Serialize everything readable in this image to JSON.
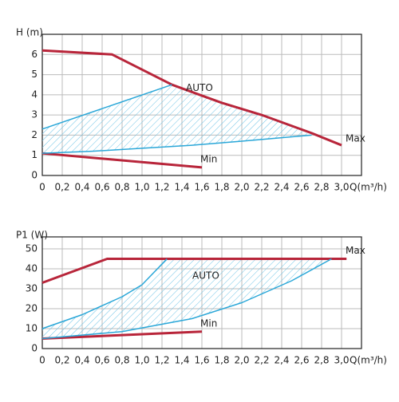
{
  "chart_data": [
    {
      "type": "line",
      "y_label": "H (m)",
      "x_label": "Q(m³/h)",
      "annotation": "AUTO",
      "xlim": [
        0,
        3.2
      ],
      "ylim": [
        0,
        7
      ],
      "xticks": [
        0,
        {
          "value": 0.2,
          "label": "0,2"
        },
        {
          "value": 0.4,
          "label": "0,4"
        },
        {
          "value": 0.6,
          "label": "0,6"
        },
        {
          "value": 0.8,
          "label": "0,8"
        },
        {
          "value": 1.0,
          "label": "1,0"
        },
        {
          "value": 1.2,
          "label": "1,2"
        },
        {
          "value": 1.4,
          "label": "1,4"
        },
        {
          "value": 1.6,
          "label": "1,6"
        },
        {
          "value": 1.8,
          "label": "1,8"
        },
        {
          "value": 2.0,
          "label": "2,0"
        },
        {
          "value": 2.2,
          "label": "2,2"
        },
        {
          "value": 2.4,
          "label": "2,4"
        },
        {
          "value": 2.6,
          "label": "2,6"
        },
        {
          "value": 2.8,
          "label": "2,8"
        },
        {
          "value": 3.0,
          "label": "3,0"
        }
      ],
      "yticks": [
        0,
        1,
        2,
        3,
        4,
        5,
        6
      ],
      "grid": true,
      "series": [
        {
          "name": "Max",
          "color": "#b8253a",
          "x": [
            0,
            0.7,
            1.3,
            1.8,
            2.2,
            2.7,
            3.0
          ],
          "values": [
            6.2,
            6.0,
            4.5,
            3.6,
            3.0,
            2.1,
            1.5
          ]
        },
        {
          "name": "Min",
          "color": "#b8253a",
          "x": [
            0,
            1.6
          ],
          "values": [
            1.1,
            0.4
          ]
        },
        {
          "color": "#2aa7d8",
          "x": [
            0,
            1.3
          ],
          "values": [
            2.3,
            4.5
          ]
        },
        {
          "color": "#2aa7d8",
          "x": [
            0,
            0.5,
            1.0,
            1.5,
            2.0,
            2.7
          ],
          "values": [
            1.1,
            1.2,
            1.35,
            1.5,
            1.7,
            2.0
          ]
        }
      ]
    },
    {
      "type": "line",
      "y_label": "P1 (W)",
      "x_label": "Q(m³/h)",
      "annotation": "AUTO",
      "xlim": [
        0,
        3.2
      ],
      "ylim": [
        0,
        56
      ],
      "xticks": [
        0,
        {
          "value": 0.2,
          "label": "0,2"
        },
        {
          "value": 0.4,
          "label": "0,4"
        },
        {
          "value": 0.6,
          "label": "0,6"
        },
        {
          "value": 0.8,
          "label": "0,8"
        },
        {
          "value": 1.0,
          "label": "1,0"
        },
        {
          "value": 1.2,
          "label": "1,2"
        },
        {
          "value": 1.4,
          "label": "1,4"
        },
        {
          "value": 1.6,
          "label": "1,6"
        },
        {
          "value": 1.8,
          "label": "1,8"
        },
        {
          "value": 2.0,
          "label": "2,0"
        },
        {
          "value": 2.2,
          "label": "2,2"
        },
        {
          "value": 2.4,
          "label": "2,4"
        },
        {
          "value": 2.6,
          "label": "2,6"
        },
        {
          "value": 2.8,
          "label": "2,8"
        },
        {
          "value": 3.0,
          "label": "3,0"
        }
      ],
      "yticks": [
        0,
        10,
        20,
        30,
        40,
        50
      ],
      "grid": true,
      "series": [
        {
          "name": "Max",
          "color": "#b8253a",
          "x": [
            0,
            0.65,
            3.05
          ],
          "values": [
            33,
            45,
            45
          ]
        },
        {
          "name": "Min",
          "color": "#b8253a",
          "x": [
            0,
            1.6
          ],
          "values": [
            5,
            8.5
          ]
        },
        {
          "color": "#2aa7d8",
          "x": [
            0,
            0.4,
            0.8,
            1.0,
            1.25
          ],
          "values": [
            10,
            17,
            26,
            32,
            45
          ]
        },
        {
          "color": "#2aa7d8",
          "x": [
            0,
            0.8,
            1.5,
            2.0,
            2.5,
            2.9
          ],
          "values": [
            5,
            8.5,
            15,
            23,
            34,
            45
          ]
        }
      ]
    }
  ]
}
